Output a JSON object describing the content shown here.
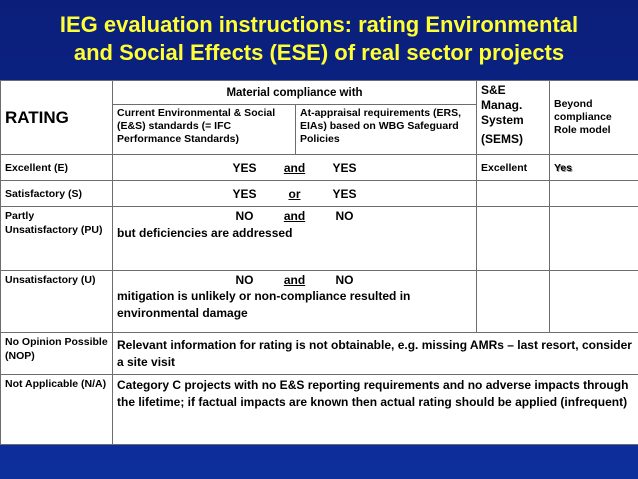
{
  "title": {
    "line1": "IEG evaluation instructions: rating Environmental",
    "line2": "and Social Effects (ESE) of real sector projects"
  },
  "header": {
    "rating": "RATING",
    "material_compliance": "Material compliance with",
    "col1": "Current Environmental & Social (E&S) standards (= IFC Performance Standards)",
    "col2": "At-appraisal requirements (ERS, EIAs) based on WBG Safeguard Policies",
    "sems_line1": "S&E Manag. System",
    "sems_line2": "(SEMS)",
    "beyond": "Beyond compliance Role model"
  },
  "rows": [
    {
      "label": "Excellent (E)",
      "a": "YES",
      "op": "and",
      "b": "YES",
      "note": "",
      "sems": "Excellent",
      "beyond": "Yes"
    },
    {
      "label": "Satisfactory (S)",
      "a": "YES",
      "op": "or",
      "b": "YES",
      "note": "",
      "sems": "",
      "beyond": ""
    },
    {
      "label": "Partly Unsatisfactory (PU)",
      "a": "NO",
      "op": "and",
      "b": "NO",
      "note": "but deficiencies are addressed",
      "sems": "",
      "beyond": ""
    },
    {
      "label": "Unsatisfactory (U)",
      "a": "NO",
      "op": "and",
      "b": "NO",
      "note": "mitigation is unlikely or non-compliance resulted in environmental damage",
      "sems": "",
      "beyond": ""
    },
    {
      "label": "No Opinion Possible (NOP)",
      "text": "Relevant information for rating is not obtainable, e.g. missing AMRs – last resort, consider a site visit"
    },
    {
      "label": "Not Applicable (N/A)",
      "text": "Category C projects with no E&S reporting requirements and no adverse impacts through the lifetime; if factual impacts are known then actual rating should be applied (infrequent)"
    }
  ]
}
